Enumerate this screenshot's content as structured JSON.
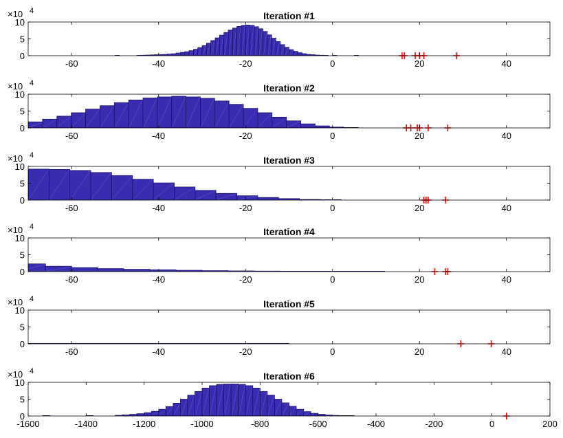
{
  "chart_data": [
    {
      "type": "bar",
      "title": "Iteration #1",
      "xlim": [
        -70,
        50
      ],
      "ylim": [
        0,
        100000
      ],
      "xticks": [
        -60,
        -40,
        -20,
        0,
        20,
        40
      ],
      "yticks": [
        0,
        5,
        10
      ],
      "y_exponent": "4",
      "bin_width": 1,
      "bins": [
        [
          -50,
          0.05
        ],
        [
          -45,
          0.1
        ],
        [
          -44,
          0.15
        ],
        [
          -43,
          0.2
        ],
        [
          -42,
          0.25
        ],
        [
          -41,
          0.3
        ],
        [
          -40,
          0.35
        ],
        [
          -39,
          0.4
        ],
        [
          -38,
          0.5
        ],
        [
          -37,
          0.6
        ],
        [
          -36,
          0.8
        ],
        [
          -35,
          1.0
        ],
        [
          -34,
          1.2
        ],
        [
          -33,
          1.5
        ],
        [
          -32,
          1.9
        ],
        [
          -31,
          2.4
        ],
        [
          -30,
          3.0
        ],
        [
          -29,
          3.7
        ],
        [
          -28,
          4.5
        ],
        [
          -27,
          5.3
        ],
        [
          -26,
          6.1
        ],
        [
          -25,
          6.9
        ],
        [
          -24,
          7.6
        ],
        [
          -23,
          8.2
        ],
        [
          -22,
          8.7
        ],
        [
          -21,
          9.0
        ],
        [
          -20,
          9.1
        ],
        [
          -19,
          9.0
        ],
        [
          -18,
          8.6
        ],
        [
          -17,
          8.0
        ],
        [
          -16,
          7.2
        ],
        [
          -15,
          6.2
        ],
        [
          -14,
          5.2
        ],
        [
          -13,
          4.2
        ],
        [
          -12,
          3.3
        ],
        [
          -11,
          2.5
        ],
        [
          -10,
          1.8
        ],
        [
          -9,
          1.3
        ],
        [
          -8,
          0.9
        ],
        [
          -7,
          0.6
        ],
        [
          -6,
          0.4
        ],
        [
          -5,
          0.3
        ],
        [
          -4,
          0.2
        ],
        [
          -3,
          0.15
        ],
        [
          -2,
          0.1
        ],
        [
          0,
          0.05
        ],
        [
          5,
          0.02
        ]
      ],
      "markers": [
        16,
        16.5,
        19,
        20,
        21,
        28.5
      ]
    },
    {
      "type": "bar",
      "title": "Iteration #2",
      "xlim": [
        -70,
        50
      ],
      "ylim": [
        0,
        100000
      ],
      "xticks": [
        -60,
        -40,
        -20,
        0,
        20,
        40
      ],
      "yticks": [
        0,
        5,
        10
      ],
      "y_exponent": "4",
      "bin_width": 3.3,
      "bins": [
        [
          -70,
          1.8
        ],
        [
          -66.7,
          2.6
        ],
        [
          -63.4,
          3.5
        ],
        [
          -60.1,
          4.5
        ],
        [
          -56.8,
          5.6
        ],
        [
          -53.5,
          6.6
        ],
        [
          -50.2,
          7.5
        ],
        [
          -46.9,
          8.3
        ],
        [
          -43.6,
          8.9
        ],
        [
          -40.3,
          9.2
        ],
        [
          -37,
          9.4
        ],
        [
          -33.7,
          9.2
        ],
        [
          -30.4,
          8.8
        ],
        [
          -27.1,
          8.0
        ],
        [
          -23.8,
          7.0
        ],
        [
          -20.5,
          5.8
        ],
        [
          -17.2,
          4.5
        ],
        [
          -13.9,
          3.2
        ],
        [
          -10.6,
          2.1
        ],
        [
          -7.3,
          1.2
        ],
        [
          -4,
          0.6
        ],
        [
          -0.7,
          0.25
        ],
        [
          2.6,
          0.08
        ]
      ],
      "markers": [
        17,
        18,
        19.5,
        20,
        22,
        26.5
      ]
    },
    {
      "type": "bar",
      "title": "Iteration #3",
      "xlim": [
        -70,
        50
      ],
      "ylim": [
        0,
        100000
      ],
      "xticks": [
        -60,
        -40,
        -20,
        0,
        20,
        40
      ],
      "yticks": [
        0,
        5,
        10
      ],
      "y_exponent": "4",
      "bin_width": 4.8,
      "bins": [
        [
          -70,
          9.2
        ],
        [
          -65.2,
          9.1
        ],
        [
          -60.4,
          8.8
        ],
        [
          -55.6,
          8.2
        ],
        [
          -50.8,
          7.3
        ],
        [
          -46,
          6.2
        ],
        [
          -41.2,
          5.1
        ],
        [
          -36.4,
          3.9
        ],
        [
          -31.6,
          2.9
        ],
        [
          -26.8,
          2.0
        ],
        [
          -22,
          1.3
        ],
        [
          -17.2,
          0.8
        ],
        [
          -12.4,
          0.45
        ],
        [
          -7.6,
          0.2
        ],
        [
          -2.8,
          0.08
        ]
      ],
      "markers": [
        21,
        21.5,
        22,
        26
      ]
    },
    {
      "type": "bar",
      "title": "Iteration #4",
      "xlim": [
        -70,
        50
      ],
      "ylim": [
        0,
        100000
      ],
      "xticks": [
        -60,
        -40,
        -20,
        0,
        20,
        40
      ],
      "yticks": [
        0,
        5,
        10
      ],
      "y_exponent": "4",
      "bin_width": 6,
      "bins": [
        [
          -72,
          2.3
        ],
        [
          -66,
          1.6
        ],
        [
          -60,
          1.2
        ],
        [
          -54,
          0.9
        ],
        [
          -48,
          0.7
        ],
        [
          -42,
          0.55
        ],
        [
          -36,
          0.4
        ],
        [
          -30,
          0.3
        ],
        [
          -24,
          0.22
        ],
        [
          -18,
          0.16
        ],
        [
          -12,
          0.12
        ],
        [
          -6,
          0.08
        ],
        [
          0,
          0.05
        ],
        [
          6,
          0.02
        ]
      ],
      "markers": [
        23.5,
        26,
        26.5
      ]
    },
    {
      "type": "bar",
      "title": "Iteration #5",
      "xlim": [
        -70,
        50
      ],
      "ylim": [
        0,
        100000
      ],
      "xticks": [
        -60,
        -40,
        -20,
        0,
        20,
        40
      ],
      "yticks": [
        0,
        5,
        10
      ],
      "y_exponent": "4",
      "bin_width": 10,
      "bins": [
        [
          -70,
          0.05
        ],
        [
          -60,
          0.03
        ],
        [
          -50,
          0.02
        ],
        [
          -40,
          0.02
        ],
        [
          -30,
          0.01
        ],
        [
          -20,
          0.01
        ]
      ],
      "markers": [
        29.5,
        36.5
      ]
    },
    {
      "type": "bar",
      "title": "Iteration #6",
      "xlim": [
        -1600,
        200
      ],
      "ylim": [
        0,
        100000
      ],
      "xticks": [
        -1600,
        -1400,
        -1200,
        -1000,
        -800,
        -600,
        -400,
        -200,
        0,
        200
      ],
      "yticks": [
        0,
        5,
        10
      ],
      "y_exponent": "4",
      "bin_width": 25,
      "bins": [
        [
          -1550,
          0.05
        ],
        [
          -1400,
          0.1
        ],
        [
          -1300,
          0.2
        ],
        [
          -1275,
          0.35
        ],
        [
          -1250,
          0.5
        ],
        [
          -1225,
          0.7
        ],
        [
          -1200,
          1.0
        ],
        [
          -1175,
          1.4
        ],
        [
          -1150,
          2.0
        ],
        [
          -1125,
          2.8
        ],
        [
          -1100,
          3.8
        ],
        [
          -1075,
          5.0
        ],
        [
          -1050,
          6.2
        ],
        [
          -1025,
          7.3
        ],
        [
          -1000,
          8.3
        ],
        [
          -975,
          9.0
        ],
        [
          -950,
          9.4
        ],
        [
          -925,
          9.5
        ],
        [
          -900,
          9.5
        ],
        [
          -875,
          9.4
        ],
        [
          -850,
          9.0
        ],
        [
          -825,
          8.3
        ],
        [
          -800,
          7.3
        ],
        [
          -775,
          6.2
        ],
        [
          -750,
          5.0
        ],
        [
          -725,
          3.9
        ],
        [
          -700,
          2.9
        ],
        [
          -675,
          2.0
        ],
        [
          -650,
          1.3
        ],
        [
          -625,
          0.8
        ],
        [
          -600,
          0.5
        ],
        [
          -575,
          0.3
        ],
        [
          -550,
          0.18
        ],
        [
          -525,
          0.1
        ],
        [
          -500,
          0.05
        ]
      ],
      "markers": [
        50
      ]
    }
  ],
  "style": {
    "bar_fill": "#3a2cb0",
    "bar_edge": "#161060",
    "marker_color": "#ff0000",
    "axis_color": "#000000"
  }
}
